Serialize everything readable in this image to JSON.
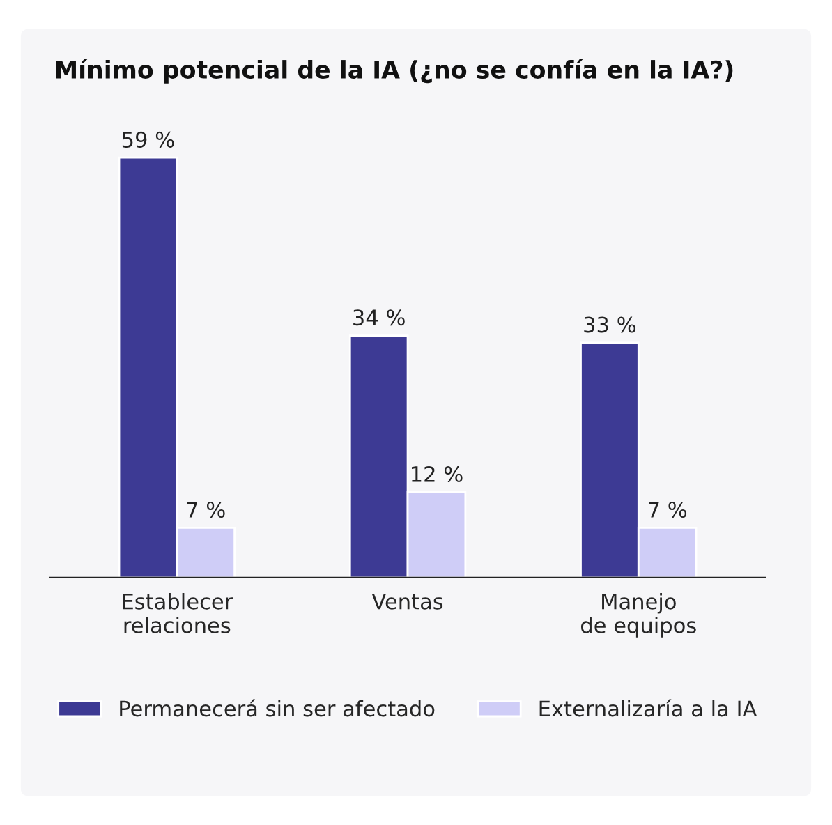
{
  "chart_data": {
    "type": "bar",
    "title": "Mínimo potencial de la IA (¿no se confía en la IA?)",
    "categories": [
      "Establecer\nrelaciones",
      "Ventas",
      "Manejo\nde equipos"
    ],
    "series": [
      {
        "name": "Permanecerá sin ser afectado",
        "color": "#3d3a94",
        "values": [
          59,
          34,
          33
        ],
        "value_labels": [
          "59 %",
          "34 %",
          "33 %"
        ]
      },
      {
        "name": "Externalizaría a la IA",
        "color": "#cfcdf7",
        "values": [
          7,
          12,
          7
        ],
        "value_labels": [
          "7 %",
          "12 %",
          "7 %"
        ]
      }
    ],
    "legend": "bottom",
    "grid": false
  }
}
